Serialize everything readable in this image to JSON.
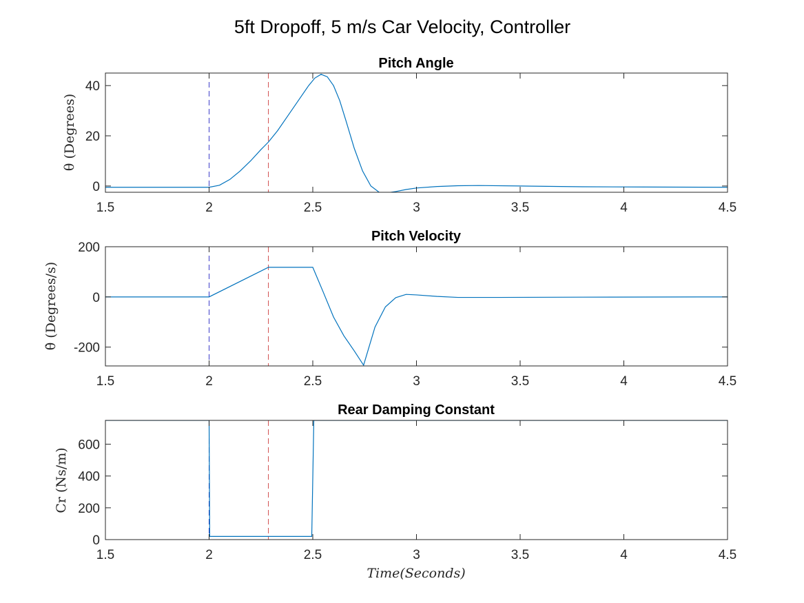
{
  "figure_title": "5ft Dropoff,   5 m/s Car Velocity,  Controller",
  "colors": {
    "series": "#0072BD",
    "marker_blue": "#3b3bc8",
    "marker_red": "#d04a4a",
    "axis": "#262626"
  },
  "chart_data": [
    {
      "type": "line",
      "title": "Pitch Angle",
      "xlabel": "",
      "ylabel": "θ  (Degrees)",
      "xlim": [
        1.5,
        4.5
      ],
      "ylim": [
        -2.5,
        45
      ],
      "xticks": [
        1.5,
        2,
        2.5,
        3,
        3.5,
        4,
        4.5
      ],
      "xtick_labels": [
        "1.5",
        "2",
        "2.5",
        "3",
        "3.5",
        "4",
        "4.5"
      ],
      "yticks": [
        0,
        20,
        40
      ],
      "ytick_labels": [
        "0",
        "20",
        "40"
      ],
      "vlines": [
        {
          "x": 2.0,
          "color": "blue",
          "style": "dashed"
        },
        {
          "x": 2.286,
          "color": "red",
          "style": "dashed"
        }
      ],
      "series": [
        {
          "x": [
            1.5,
            2.0,
            2.05,
            2.1,
            2.15,
            2.2,
            2.25,
            2.286,
            2.33,
            2.38,
            2.43,
            2.48,
            2.51,
            2.54,
            2.57,
            2.6,
            2.63,
            2.66,
            2.7,
            2.74,
            2.78,
            2.82,
            2.86,
            2.9,
            2.95,
            3.0,
            3.1,
            3.2,
            3.3,
            3.5,
            3.8,
            4.1,
            4.5
          ],
          "y": [
            -0.5,
            -0.5,
            0.3,
            2.6,
            6.0,
            10.0,
            14.5,
            17.5,
            22.0,
            28.0,
            34.0,
            40.0,
            43.0,
            44.5,
            43.5,
            40.0,
            34.0,
            26.0,
            15.0,
            6.0,
            0.0,
            -2.5,
            -2.7,
            -2.2,
            -1.4,
            -0.8,
            -0.2,
            0.1,
            0.2,
            0.0,
            -0.3,
            -0.4,
            -0.5
          ]
        }
      ]
    },
    {
      "type": "line",
      "title": "Pitch Velocity",
      "xlabel": "",
      "ylabel": "θ̇  (Degrees/s)",
      "xlim": [
        1.5,
        4.5
      ],
      "ylim": [
        -275,
        200
      ],
      "xticks": [
        1.5,
        2,
        2.5,
        3,
        3.5,
        4,
        4.5
      ],
      "xtick_labels": [
        "1.5",
        "2",
        "2.5",
        "3",
        "3.5",
        "4",
        "4.5"
      ],
      "yticks": [
        -200,
        0,
        200
      ],
      "ytick_labels": [
        "-200",
        "0",
        "200"
      ],
      "vlines": [
        {
          "x": 2.0,
          "color": "blue",
          "style": "dashed"
        },
        {
          "x": 2.286,
          "color": "red",
          "style": "dashed"
        }
      ],
      "series": [
        {
          "x": [
            1.5,
            2.0,
            2.286,
            2.5,
            2.55,
            2.6,
            2.65,
            2.7,
            2.745,
            2.8,
            2.85,
            2.9,
            2.95,
            3.0,
            3.1,
            3.2,
            3.4,
            3.8,
            4.5
          ],
          "y": [
            0,
            0,
            118,
            118,
            20,
            -80,
            -155,
            -215,
            -272,
            -120,
            -40,
            -3,
            10,
            8,
            2,
            -2,
            -2,
            -1,
            0
          ]
        }
      ]
    },
    {
      "type": "line",
      "title": "Rear Damping Constant",
      "xlabel": "Time(Seconds)",
      "ylabel": "Cr  (Ns/m)",
      "xlim": [
        1.5,
        4.5
      ],
      "ylim": [
        0,
        750
      ],
      "xticks": [
        1.5,
        2,
        2.5,
        3,
        3.5,
        4,
        4.5
      ],
      "xtick_labels": [
        "1.5",
        "2",
        "2.5",
        "3",
        "3.5",
        "4",
        "4.5"
      ],
      "yticks": [
        0,
        200,
        400,
        600
      ],
      "ytick_labels": [
        "0",
        "200",
        "400",
        "600"
      ],
      "vlines": [
        {
          "x": 2.0,
          "color": "blue",
          "style": "dashed"
        },
        {
          "x": 2.286,
          "color": "red",
          "style": "dashed"
        }
      ],
      "series": [
        {
          "x": [
            1.5,
            2.0,
            2.003,
            2.495,
            2.505,
            4.5
          ],
          "y": [
            750,
            750,
            20,
            20,
            750,
            750
          ]
        }
      ]
    }
  ]
}
